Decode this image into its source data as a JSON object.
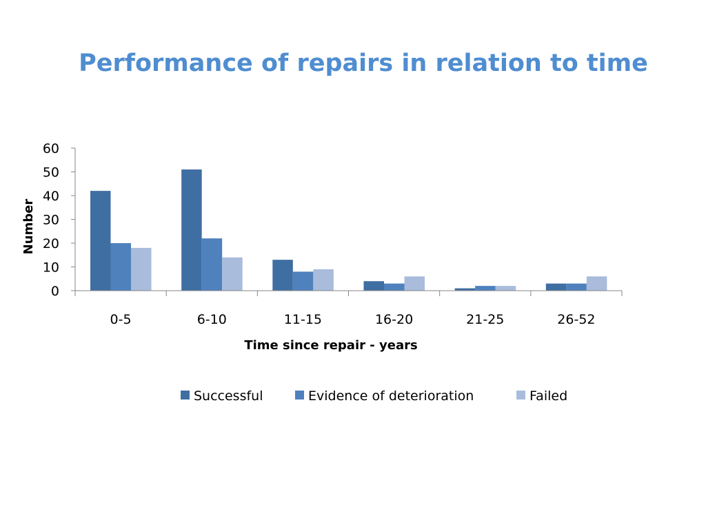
{
  "slide": {
    "title": "Performance of repairs in relation to time"
  },
  "chart_data": {
    "type": "bar",
    "title": "",
    "xlabel": "Time since repair - years",
    "ylabel": "Number",
    "categories": [
      "0-5",
      "6-10",
      "11-15",
      "16-20",
      "21-25",
      "26-52"
    ],
    "series": [
      {
        "name": "Successful",
        "color": "#3f6ea3",
        "values": [
          42,
          51,
          13,
          4,
          1,
          3
        ]
      },
      {
        "name": "Evidence of deterioration",
        "color": "#4f81bd",
        "values": [
          20,
          22,
          8,
          3,
          2,
          3
        ]
      },
      {
        "name": "Failed",
        "color": "#a9bcdc",
        "values": [
          18,
          14,
          9,
          6,
          2,
          6
        ]
      }
    ],
    "ylim": [
      0,
      60
    ],
    "yticks": [
      0,
      10,
      20,
      30,
      40,
      50,
      60
    ],
    "grid": false,
    "legend_position": "bottom"
  }
}
